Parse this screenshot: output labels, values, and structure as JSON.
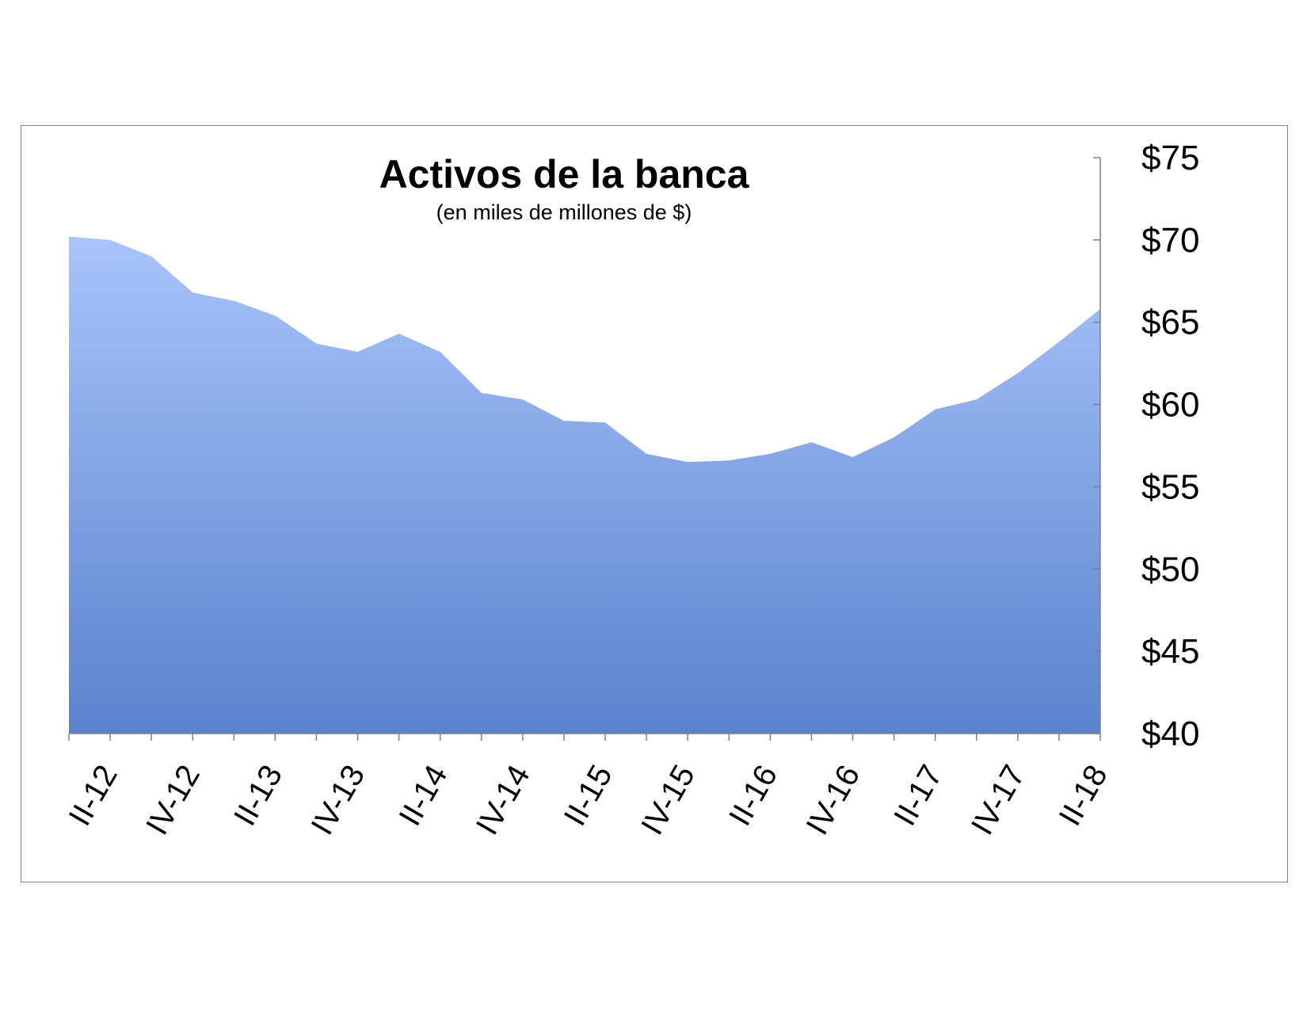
{
  "chart_data": {
    "type": "area",
    "title": "Activos de la banca",
    "subtitle": "(en miles de millones de $)",
    "xlabel": "",
    "ylabel": "",
    "ylim": [
      40,
      75
    ],
    "yticks": [
      40,
      45,
      50,
      55,
      60,
      65,
      70,
      75
    ],
    "ytick_labels": [
      "$40",
      "$45",
      "$50",
      "$55",
      "$60",
      "$65",
      "$70",
      "$75"
    ],
    "xtick_labels": [
      "II-12",
      "IV-12",
      "II-13",
      "IV-13",
      "II-14",
      "IV-14",
      "II-15",
      "IV-15",
      "II-16",
      "IV-16",
      "II-17",
      "IV-17",
      "II-18"
    ],
    "y_axis_position": "right",
    "grid": false,
    "legend": "none",
    "series": [
      {
        "values": [
          70.2,
          70.0,
          69.0,
          66.8,
          66.3,
          65.4,
          63.7,
          63.2,
          64.3,
          63.2,
          60.7,
          60.3,
          59.0,
          58.9,
          57.0,
          56.5,
          56.6,
          57.0,
          57.7,
          56.8,
          58.0,
          59.7,
          60.3,
          61.9,
          63.8,
          65.8
        ]
      }
    ],
    "colors": {
      "fill_top": "#a9c4fb",
      "fill_bottom": "#5b82cc"
    }
  }
}
